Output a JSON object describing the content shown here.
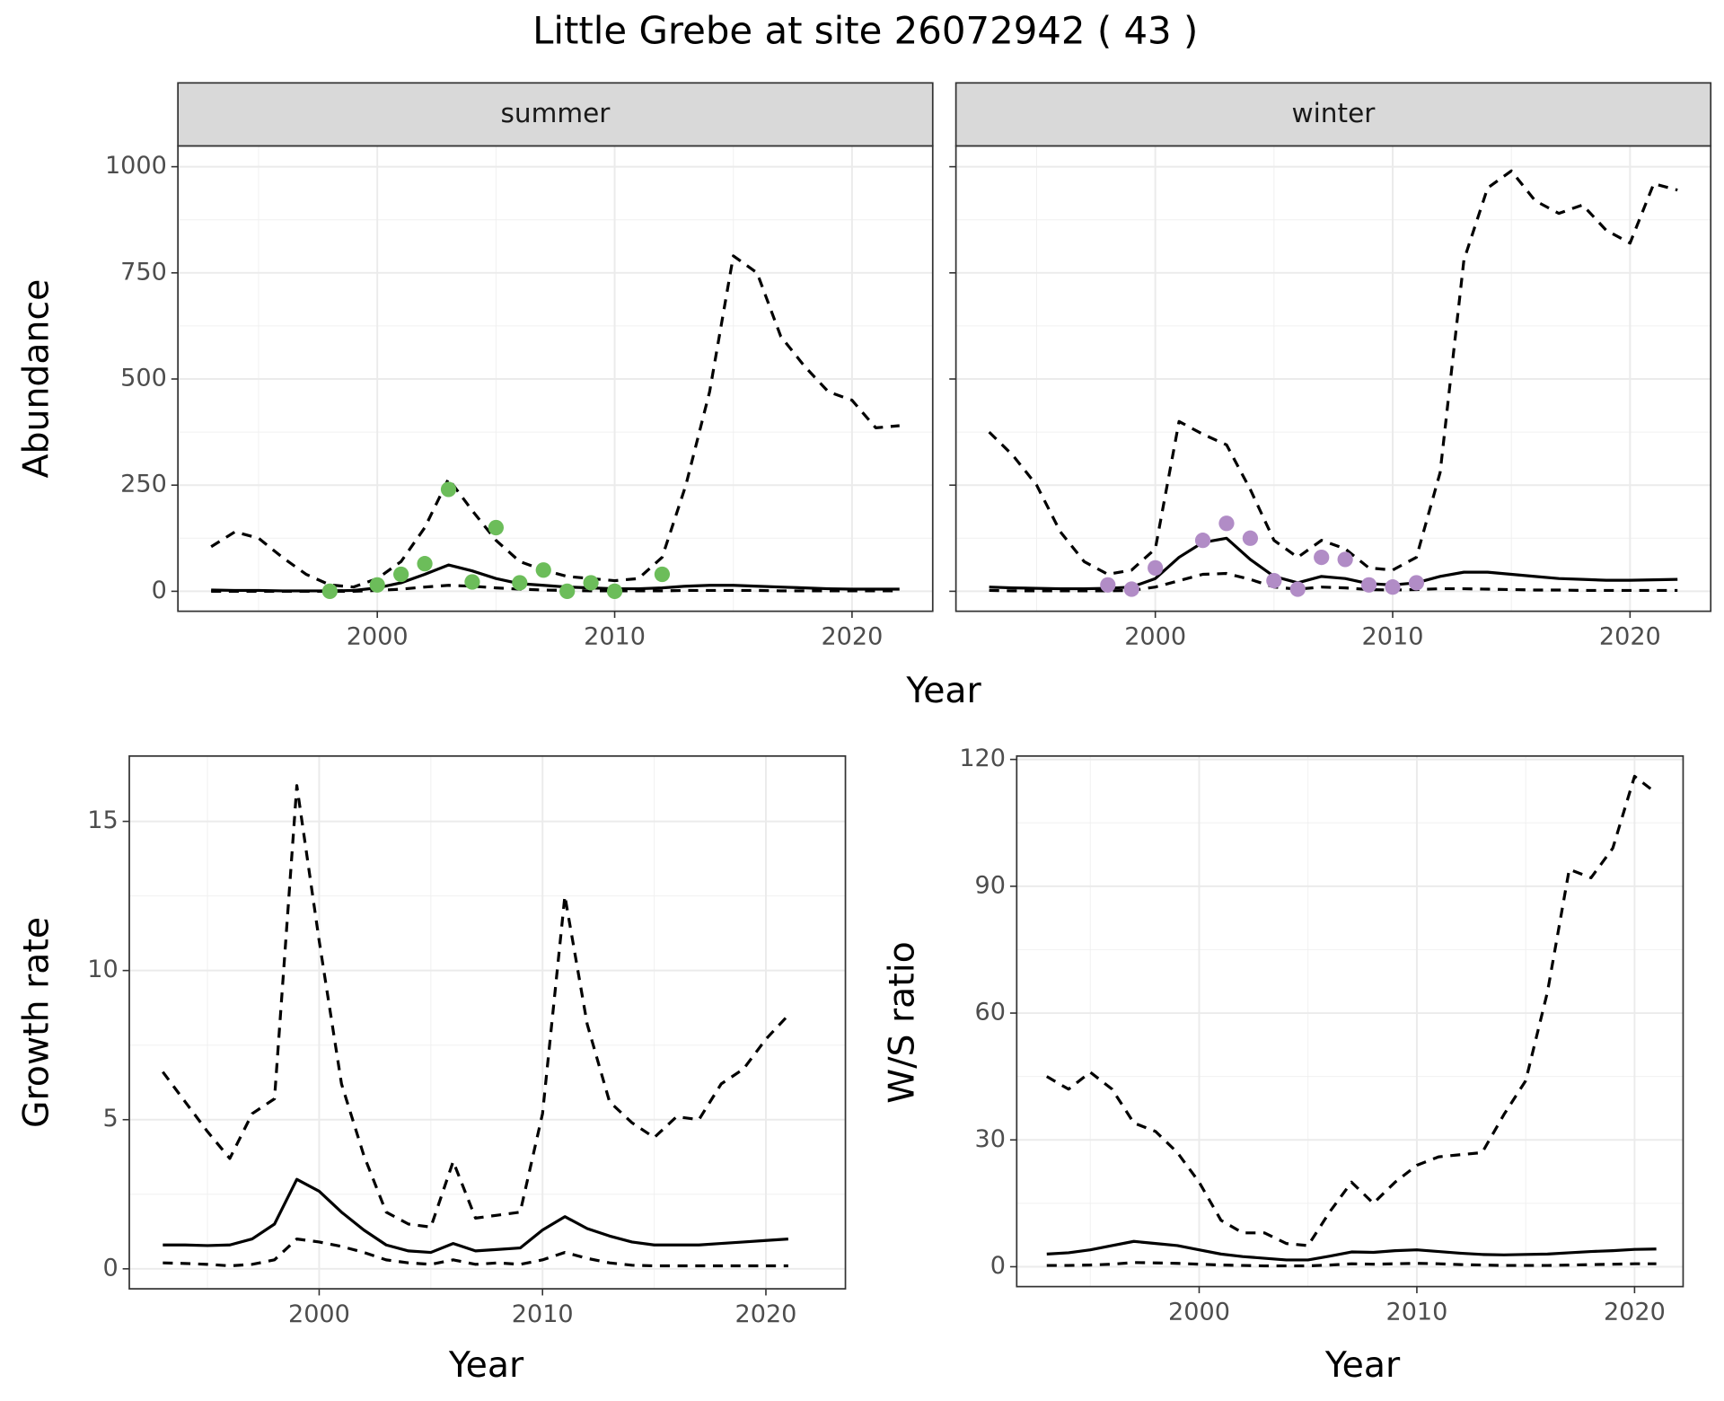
{
  "title": "Little Grebe at site 26072942 ( 43 )",
  "chart_data": [
    {
      "type": "line",
      "title": "summer",
      "ylabel": "Abundance",
      "xlabel": "Year",
      "x": [
        1993,
        1994,
        1995,
        1996,
        1997,
        1998,
        1999,
        2000,
        2001,
        2002,
        2003,
        2004,
        2005,
        2006,
        2007,
        2008,
        2009,
        2010,
        2011,
        2012,
        2013,
        2014,
        2015,
        2016,
        2017,
        2018,
        2019,
        2020,
        2021,
        2022
      ],
      "xlim": [
        1991.6,
        2023.4
      ],
      "xticks": [
        2000,
        2010,
        2020
      ],
      "xminor": [
        1995,
        2005,
        2015
      ],
      "ylim": [
        -47,
        1049
      ],
      "yticks": [
        0,
        250,
        500,
        750,
        1000
      ],
      "yminor": [
        125,
        375,
        625,
        875
      ],
      "grid": true,
      "series": [
        {
          "color": "#000000",
          "dashed": true,
          "values": [
            105,
            140,
            125,
            80,
            40,
            15,
            10,
            30,
            70,
            150,
            265,
            190,
            120,
            70,
            50,
            35,
            30,
            25,
            30,
            80,
            250,
            470,
            790,
            750,
            600,
            530,
            470,
            450,
            385,
            390
          ]
        },
        {
          "color": "#000000",
          "dashed": false,
          "values": [
            3,
            2,
            2,
            1,
            1,
            1,
            2,
            8,
            20,
            40,
            62,
            48,
            30,
            18,
            14,
            10,
            8,
            6,
            6,
            8,
            12,
            14,
            14,
            12,
            10,
            8,
            6,
            5,
            5,
            5
          ]
        },
        {
          "color": "#000000",
          "dashed": true,
          "values": [
            0,
            0,
            0,
            0,
            0,
            0,
            0,
            2,
            5,
            10,
            14,
            12,
            8,
            5,
            3,
            2,
            1,
            1,
            1,
            1,
            2,
            2,
            2,
            2,
            1,
            1,
            1,
            1,
            1,
            1
          ]
        },
        {
          "type": "scatter",
          "color": "#6cbd5a",
          "x": [
            1998,
            2000,
            2001,
            2002,
            2003,
            2004,
            2005,
            2006,
            2007,
            2008,
            2009,
            2010,
            2012
          ],
          "values": [
            0,
            15,
            40,
            65,
            240,
            22,
            150,
            20,
            50,
            0,
            20,
            0,
            40
          ]
        }
      ]
    },
    {
      "type": "line",
      "title": "winter",
      "x": [
        1993,
        1994,
        1995,
        1996,
        1997,
        1998,
        1999,
        2000,
        2001,
        2002,
        2003,
        2004,
        2005,
        2006,
        2007,
        2008,
        2009,
        2010,
        2011,
        2012,
        2013,
        2014,
        2015,
        2016,
        2017,
        2018,
        2019,
        2020,
        2021,
        2022
      ],
      "xlim": [
        1991.6,
        2023.4
      ],
      "xticks": [
        2000,
        2010,
        2020
      ],
      "xminor": [
        1995,
        2005,
        2015
      ],
      "ylim": [
        -47,
        1049
      ],
      "yticks": [
        0,
        250,
        500,
        750,
        1000
      ],
      "yminor": [
        125,
        375,
        625,
        875
      ],
      "grid": true,
      "series": [
        {
          "color": "#000000",
          "dashed": true,
          "values": [
            375,
            320,
            250,
            140,
            70,
            40,
            50,
            100,
            400,
            370,
            345,
            240,
            120,
            80,
            120,
            100,
            55,
            50,
            80,
            280,
            780,
            950,
            990,
            920,
            890,
            910,
            850,
            820,
            960,
            945
          ]
        },
        {
          "color": "#000000",
          "dashed": false,
          "values": [
            10,
            8,
            7,
            6,
            6,
            7,
            10,
            30,
            80,
            115,
            125,
            75,
            35,
            20,
            35,
            30,
            18,
            15,
            20,
            35,
            45,
            45,
            40,
            35,
            30,
            28,
            26,
            26,
            27,
            28
          ]
        },
        {
          "color": "#000000",
          "dashed": true,
          "values": [
            2,
            1,
            1,
            1,
            1,
            1,
            2,
            10,
            25,
            40,
            42,
            28,
            10,
            5,
            10,
            8,
            4,
            3,
            4,
            6,
            6,
            5,
            4,
            3,
            3,
            2,
            2,
            2,
            2,
            2
          ]
        },
        {
          "type": "scatter",
          "color": "#b18cc6",
          "x": [
            1998,
            1999,
            2000,
            2002,
            2003,
            2004,
            2005,
            2006,
            2007,
            2008,
            2009,
            2010,
            2011
          ],
          "values": [
            15,
            5,
            55,
            120,
            160,
            125,
            25,
            5,
            80,
            75,
            15,
            10,
            20
          ]
        }
      ]
    },
    {
      "type": "line",
      "ylabel": "Growth rate",
      "xlabel": "Year",
      "x": [
        1993,
        1994,
        1995,
        1996,
        1997,
        1998,
        1999,
        2000,
        2001,
        2002,
        2003,
        2004,
        2005,
        2006,
        2007,
        2008,
        2009,
        2010,
        2011,
        2012,
        2013,
        2014,
        2015,
        2016,
        2017,
        2018,
        2019,
        2020,
        2021
      ],
      "xlim": [
        1991.5,
        2023.56
      ],
      "xticks": [
        2000,
        2010,
        2020
      ],
      "xminor": [
        1995,
        2005,
        2015
      ],
      "ylim": [
        -0.67,
        17.19
      ],
      "yticks": [
        0,
        5,
        10,
        15
      ],
      "yminor": [
        2.5,
        7.5,
        12.5
      ],
      "grid": true,
      "series": [
        {
          "color": "#000000",
          "dashed": true,
          "values": [
            6.6,
            5.6,
            4.6,
            3.7,
            5.2,
            5.7,
            16.2,
            11.0,
            6.2,
            3.8,
            1.9,
            1.5,
            1.4,
            3.6,
            1.7,
            1.8,
            1.9,
            5.2,
            12.5,
            8.2,
            5.6,
            4.9,
            4.4,
            5.1,
            5.0,
            6.2,
            6.7,
            7.7,
            8.5
          ]
        },
        {
          "color": "#000000",
          "dashed": false,
          "values": [
            0.8,
            0.8,
            0.78,
            0.8,
            1.0,
            1.5,
            3.0,
            2.6,
            1.9,
            1.3,
            0.8,
            0.6,
            0.55,
            0.85,
            0.6,
            0.65,
            0.7,
            1.3,
            1.75,
            1.35,
            1.1,
            0.9,
            0.8,
            0.8,
            0.8,
            0.85,
            0.9,
            0.95,
            1.0
          ]
        },
        {
          "color": "#000000",
          "dashed": true,
          "values": [
            0.2,
            0.18,
            0.15,
            0.1,
            0.15,
            0.3,
            1.0,
            0.9,
            0.75,
            0.55,
            0.3,
            0.2,
            0.15,
            0.3,
            0.15,
            0.2,
            0.15,
            0.3,
            0.55,
            0.35,
            0.2,
            0.12,
            0.1,
            0.1,
            0.1,
            0.1,
            0.1,
            0.1,
            0.1
          ]
        }
      ]
    },
    {
      "type": "line",
      "ylabel": "W/S ratio",
      "xlabel": "Year",
      "x": [
        1993,
        1994,
        1995,
        1996,
        1997,
        1998,
        1999,
        2000,
        2001,
        2002,
        2003,
        2004,
        2005,
        2006,
        2007,
        2008,
        2009,
        2010,
        2011,
        2012,
        2013,
        2014,
        2015,
        2016,
        2017,
        2018,
        2019,
        2020,
        2021
      ],
      "xlim": [
        1991.62,
        2022.23
      ],
      "xticks": [
        2000,
        2010,
        2020
      ],
      "xminor": [
        1995,
        2005,
        2015
      ],
      "ylim": [
        -4.7,
        120.8
      ],
      "yticks": [
        0,
        30,
        60,
        90,
        120
      ],
      "yminor": [
        15,
        45,
        75,
        105
      ],
      "grid": true,
      "series": [
        {
          "color": "#000000",
          "dashed": true,
          "values": [
            45,
            42,
            46,
            42,
            34,
            32,
            27,
            20,
            11,
            8,
            8,
            5.5,
            5,
            13,
            20,
            15,
            20,
            24,
            26,
            26.5,
            27,
            36,
            44,
            65,
            94,
            92,
            99,
            116,
            112
          ]
        },
        {
          "color": "#000000",
          "dashed": false,
          "values": [
            3,
            3.3,
            4,
            5,
            6,
            5.5,
            5,
            4,
            3,
            2.4,
            2,
            1.6,
            1.6,
            2.5,
            3.5,
            3.4,
            3.8,
            4,
            3.6,
            3.2,
            2.9,
            2.8,
            2.9,
            3,
            3.3,
            3.6,
            3.8,
            4.1,
            4.2
          ]
        },
        {
          "color": "#000000",
          "dashed": true,
          "values": [
            0.3,
            0.3,
            0.4,
            0.6,
            1,
            0.9,
            0.8,
            0.6,
            0.4,
            0.3,
            0.2,
            0.2,
            0.2,
            0.4,
            0.7,
            0.6,
            0.7,
            0.8,
            0.7,
            0.5,
            0.4,
            0.3,
            0.3,
            0.3,
            0.4,
            0.5,
            0.6,
            0.7,
            0.7
          ]
        }
      ]
    }
  ]
}
